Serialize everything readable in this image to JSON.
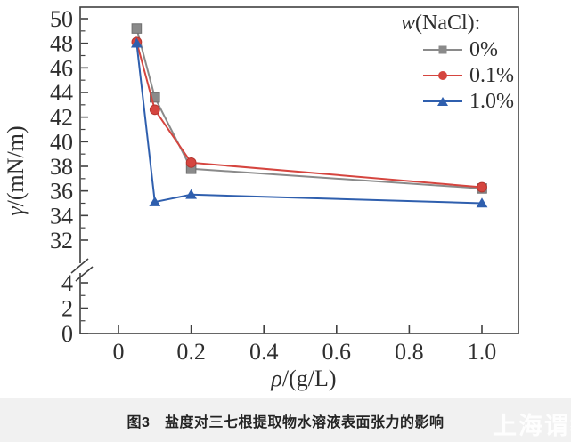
{
  "figure": {
    "caption": "图3　盐度对三七根提取物水溶液表面张力的影响",
    "watermark": "上海谓教"
  },
  "chart_data": {
    "type": "line",
    "title": "",
    "xlabel": "ρ/(g/L)",
    "xlabel_symbol": "ρ",
    "xlabel_rest": "/(g/L)",
    "ylabel": "γ/(mN/m)",
    "ylabel_symbol": "γ",
    "ylabel_rest": "/(mN/m)",
    "xlim": [
      -0.105,
      1.1
    ],
    "ylim_upper": [
      32,
      50
    ],
    "ylim_lower": [
      0,
      4
    ],
    "y_axis_break_between": [
      4,
      32
    ],
    "x_tick_values": [
      0,
      0.2,
      0.4,
      0.6,
      0.8,
      1.0
    ],
    "x_tick_labels": [
      "0",
      "0.2",
      "0.4",
      "0.6",
      "0.8",
      "1.0"
    ],
    "y_ticks_upper": [
      50,
      48,
      46,
      44,
      42,
      40,
      38,
      36,
      34,
      32
    ],
    "y_minor_upper": [
      49,
      47,
      45,
      43,
      41,
      39,
      37,
      35,
      33
    ],
    "y_ticks_lower": [
      4,
      2,
      0
    ],
    "y_minor_lower": [
      3,
      1
    ],
    "grid": false,
    "axis_color": "#404040",
    "legend": {
      "title": "w(NaCl):",
      "title_symbol": "w",
      "title_rest": "(NaCl):",
      "position": "top-right"
    },
    "series": [
      {
        "name": "0%",
        "marker": "square",
        "color": "#8a8a8a",
        "x": [
          0.05,
          0.1,
          0.2,
          1.0
        ],
        "y": [
          49.2,
          43.6,
          37.8,
          36.2
        ]
      },
      {
        "name": "0.1%",
        "marker": "circle",
        "color": "#d5453f",
        "x": [
          0.05,
          0.1,
          0.2,
          1.0
        ],
        "y": [
          48.1,
          42.6,
          38.3,
          36.3
        ]
      },
      {
        "name": "1.0%",
        "marker": "triangle",
        "color": "#2f5fae",
        "x": [
          0.05,
          0.1,
          0.2,
          1.0
        ],
        "y": [
          48.0,
          35.1,
          35.7,
          35.0
        ]
      }
    ]
  }
}
